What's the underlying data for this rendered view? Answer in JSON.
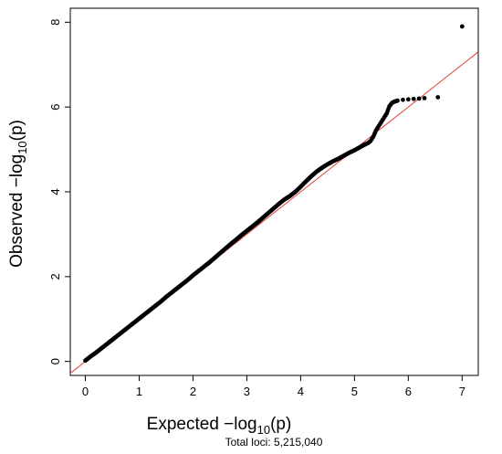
{
  "chart_data": {
    "type": "scatter",
    "title": "",
    "xlabel": {
      "prefix": "Expected  −log",
      "sub": "10",
      "suffix": "(p)"
    },
    "ylabel": {
      "prefix": "Observed  −log",
      "sub": "10",
      "suffix": "(p)"
    },
    "footnote": "Total loci: 5,215,040",
    "xlim": [
      -0.28,
      7.3
    ],
    "ylim": [
      -0.33,
      8.33
    ],
    "xticks": [
      0,
      1,
      2,
      3,
      4,
      5,
      6,
      7
    ],
    "yticks": [
      0,
      2,
      4,
      6,
      8
    ],
    "xtick_labels": [
      "0",
      "1",
      "2",
      "3",
      "4",
      "5",
      "6",
      "7"
    ],
    "ytick_labels": [
      "0",
      "2",
      "4",
      "6",
      "8"
    ],
    "grid": false,
    "point_color": "#000000",
    "reference_line": {
      "slope": 1,
      "intercept": 0,
      "color": "#e0413a"
    },
    "series": [
      {
        "x": [
          0.0,
          0.1,
          0.2,
          0.3,
          0.4,
          0.5,
          0.6,
          0.7,
          0.8,
          0.9,
          1.0,
          1.1,
          1.2,
          1.3,
          1.4,
          1.5,
          1.6,
          1.7,
          1.8,
          1.9,
          2.0,
          2.1,
          2.2,
          2.3,
          2.4,
          2.5,
          2.6,
          2.7,
          2.8,
          2.9,
          3.0,
          3.1,
          3.2,
          3.3,
          3.4,
          3.5,
          3.6,
          3.7,
          3.8,
          3.9,
          4.0,
          4.1,
          4.2,
          4.3,
          4.4,
          4.5,
          4.6,
          4.7,
          4.8,
          4.9,
          5.0,
          5.1,
          5.2,
          5.25,
          5.3,
          5.35,
          5.4,
          5.45,
          5.5,
          5.55,
          5.6,
          5.65,
          5.7,
          5.75,
          5.8,
          5.9,
          6.0,
          6.1,
          6.2,
          6.3,
          6.55,
          7.0
        ],
        "y": [
          0.02,
          0.12,
          0.21,
          0.31,
          0.41,
          0.51,
          0.61,
          0.71,
          0.81,
          0.91,
          1.01,
          1.11,
          1.21,
          1.31,
          1.41,
          1.52,
          1.62,
          1.72,
          1.82,
          1.92,
          2.03,
          2.13,
          2.23,
          2.33,
          2.44,
          2.55,
          2.66,
          2.77,
          2.87,
          2.98,
          3.08,
          3.18,
          3.28,
          3.39,
          3.5,
          3.61,
          3.72,
          3.82,
          3.9,
          4.0,
          4.12,
          4.25,
          4.37,
          4.48,
          4.57,
          4.65,
          4.72,
          4.78,
          4.85,
          4.92,
          4.98,
          5.05,
          5.12,
          5.15,
          5.2,
          5.3,
          5.45,
          5.55,
          5.65,
          5.75,
          5.85,
          6.02,
          6.1,
          6.13,
          6.15,
          6.17,
          6.18,
          6.19,
          6.2,
          6.21,
          6.23,
          7.9
        ]
      }
    ]
  }
}
